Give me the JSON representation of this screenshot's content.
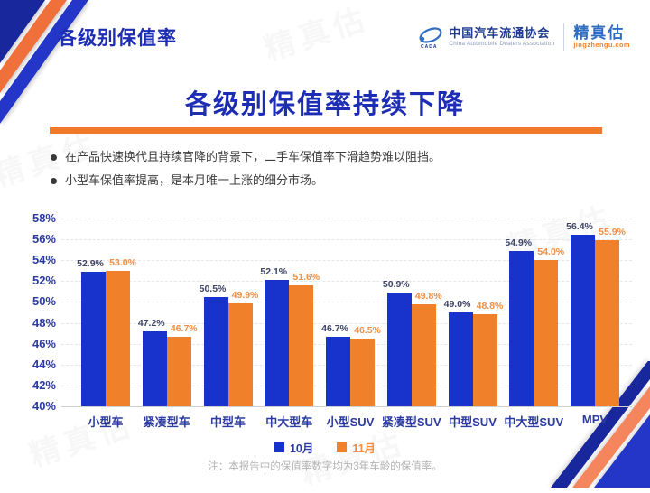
{
  "header": {
    "section_title": "各级别保值率"
  },
  "logo": {
    "org_cn": "中国汽车流通协会",
    "org_en": "China Automobile Dealers Association",
    "brand": "精真估",
    "brand_domain": "jingzhengu.com"
  },
  "main_title": "各级别保值率持续下降",
  "bullets": [
    "在产品快速换代且持续官降的背景下，二手车保值率下滑趋势难以阻挡。",
    "小型车保值率提高，是本月唯一上涨的细分市场。"
  ],
  "note": "注：本报告中的保值率数字均为3年车龄的保值率。",
  "watermark": "精真估",
  "colors": {
    "accent_blue": "#1d2db4",
    "divider_orange": "#f2792c",
    "bar_blue": "#1733cb",
    "bar_orange": "#f0812a",
    "value_label_navy": "#3d4466",
    "value_label_orange": "#ef8e44",
    "axis_text_blue": "#2c3ba0",
    "note_gray": "#b3b3b3",
    "ribbon_navy": "#18279c",
    "ribbon_salmon": "#f5855c",
    "ribbon_blue": "#2336c8"
  },
  "chart_data": {
    "type": "bar",
    "title": "各级别保值率持续下降",
    "xlabel": "",
    "ylabel": "",
    "categories": [
      "小型车",
      "紧凑型车",
      "中型车",
      "中大型车",
      "小型SUV",
      "紧凑型SUV",
      "中型SUV",
      "中大型SUV",
      "MPV"
    ],
    "series": [
      {
        "name": "10月",
        "color": "#1733cb",
        "label_color": "#3d4466",
        "values": [
          52.9,
          47.2,
          50.5,
          52.1,
          46.7,
          50.9,
          49.0,
          54.9,
          56.4
        ]
      },
      {
        "name": "11月",
        "color": "#f0812a",
        "label_color": "#ef8e44",
        "values": [
          53.0,
          46.7,
          49.9,
          51.6,
          46.5,
          49.8,
          48.8,
          54.0,
          55.9
        ]
      }
    ],
    "ylim": [
      40,
      58
    ],
    "yticks": [
      40,
      42,
      44,
      46,
      48,
      50,
      52,
      54,
      56,
      58
    ],
    "ytick_suffix": "%",
    "grid": true,
    "legend_position": "bottom",
    "value_labels": true
  }
}
